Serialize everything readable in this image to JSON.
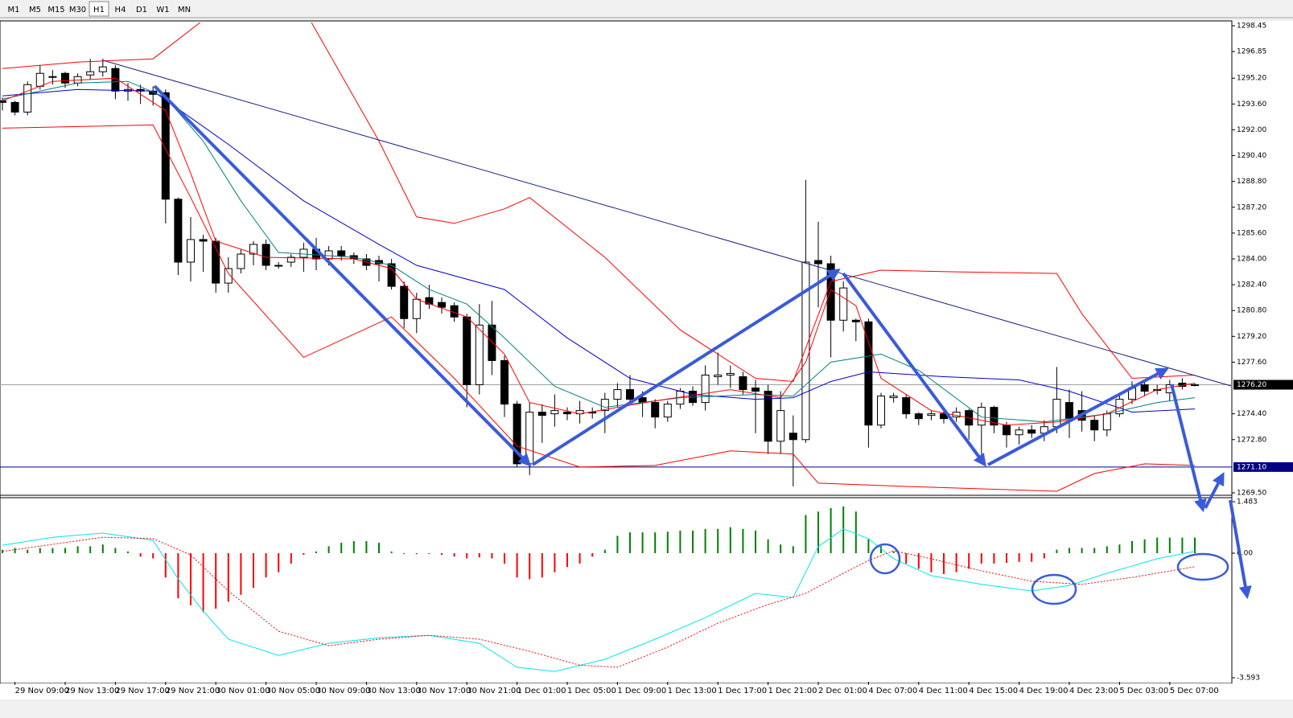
{
  "toolbar": {
    "buttons": [
      "M1",
      "M5",
      "M15",
      "M30",
      "H1",
      "H4",
      "D1",
      "W1",
      "MN"
    ],
    "active": 4
  },
  "chart_data": [
    {
      "type": "candlestick",
      "categories": [
        null,
        "29 Nov 09:00",
        null,
        null,
        null,
        "29 Nov 13:00",
        null,
        null,
        null,
        "29 Nov 17:00",
        null,
        null,
        null,
        "29 Nov 21:00",
        null,
        null,
        null,
        "30 Nov 01:00",
        null,
        null,
        null,
        "30 Nov 05:00",
        null,
        null,
        null,
        "30 Nov 09:00",
        null,
        null,
        null,
        "30 Nov 13:00",
        null,
        null,
        null,
        "30 Nov 17:00",
        null,
        null,
        null,
        "30 Nov 21:00",
        null,
        null,
        null,
        "1 Dec 01:00",
        null,
        null,
        null,
        "1 Dec 05:00",
        null,
        null,
        null,
        "1 Dec 09:00",
        null,
        null,
        null,
        "1 Dec 13:00",
        null,
        null,
        null,
        "1 Dec 17:00",
        null,
        null,
        null,
        "1 Dec 21:00",
        null,
        null,
        null,
        "2 Dec 01:00",
        null,
        null,
        null,
        "4 Dec 07:00",
        null,
        null,
        null,
        "4 Dec 11:00",
        null,
        null,
        null,
        "4 Dec 15:00",
        null,
        null,
        null,
        "4 Dec 19:00",
        null,
        null,
        null,
        "4 Dec 23:00",
        null,
        null,
        null,
        "5 Dec 03:00",
        null,
        null,
        null,
        "5 Dec 07:00",
        null,
        null
      ],
      "open": [
        1293.8,
        1293.7,
        1293.1,
        1294.7,
        1295.3,
        1295.5,
        1294.9,
        1295.4,
        1295.6,
        1295.8,
        1294.4,
        1294.5,
        1294.4,
        1294.3,
        1287.7,
        1283.8,
        1285.2,
        1285.1,
        1282.5,
        1283.4,
        1284.3,
        1284.9,
        1283.6,
        1283.8,
        1284.1,
        1284.6,
        1284.0,
        1284.5,
        1284.2,
        1284.0,
        1283.9,
        1283.7,
        1282.3,
        1280.3,
        1281.6,
        1281.3,
        1281.1,
        1280.4,
        1276.2,
        1279.9,
        1277.7,
        1275.0,
        1271.3,
        1274.5,
        1274.4,
        1274.5,
        1274.4,
        1274.5,
        1274.6,
        1275.3,
        1275.9,
        1275.4,
        1275.1,
        1274.2,
        1275.0,
        1275.8,
        1275.1,
        1276.7,
        1276.8,
        1276.7,
        1276.0,
        1275.8,
        1272.7,
        1273.2,
        1272.8,
        1283.9,
        1283.7,
        1280.2,
        1280.2,
        1280.1,
        1273.7,
        1275.4,
        1275.4,
        1274.4,
        1274.3,
        1274.4,
        1274.2,
        1274.6,
        1273.7,
        1274.8,
        1273.7,
        1273.1,
        1273.4,
        1273.2,
        1273.6,
        1275.1,
        1274.6,
        1274.0,
        1273.4,
        1274.4,
        1275.3,
        1276.2,
        1275.9,
        1275.7,
        1276.3,
        1276.2
      ],
      "high": [
        1294.0,
        1293.8,
        1295.0,
        1296.0,
        1295.7,
        1295.6,
        1295.5,
        1296.4,
        1296.4,
        1296.0,
        1294.9,
        1294.8,
        1294.7,
        1294.5,
        1287.8,
        1286.6,
        1285.5,
        1285.3,
        1284.1,
        1284.6,
        1285.1,
        1285.2,
        1283.8,
        1284.3,
        1285.0,
        1285.3,
        1284.8,
        1284.8,
        1284.4,
        1284.3,
        1284.2,
        1284.0,
        1282.6,
        1281.9,
        1282.4,
        1281.6,
        1281.3,
        1280.6,
        1281.2,
        1281.4,
        1278.0,
        1275.2,
        1275.1,
        1275.0,
        1275.6,
        1274.8,
        1275.2,
        1274.8,
        1275.7,
        1276.3,
        1276.8,
        1275.8,
        1275.3,
        1275.2,
        1276.0,
        1276.1,
        1277.4,
        1278.2,
        1277.4,
        1277.0,
        1276.5,
        1276.2,
        1275.8,
        1274.3,
        1288.9,
        1286.3,
        1284.2,
        1282.6,
        1280.3,
        1280.3,
        1275.7,
        1275.7,
        1275.6,
        1274.5,
        1274.6,
        1274.6,
        1274.8,
        1274.7,
        1275.1,
        1274.9,
        1273.9,
        1273.6,
        1273.7,
        1274.0,
        1277.3,
        1275.9,
        1275.8,
        1274.3,
        1274.6,
        1275.6,
        1276.4,
        1276.5,
        1276.2,
        1276.5,
        1276.6,
        1276.3
      ],
      "low": [
        1293.2,
        1292.9,
        1292.9,
        1294.5,
        1294.8,
        1294.6,
        1294.7,
        1295.1,
        1295.3,
        1293.9,
        1293.8,
        1293.6,
        1293.5,
        1286.2,
        1283.0,
        1282.6,
        1283.2,
        1281.9,
        1281.9,
        1283.1,
        1283.6,
        1283.3,
        1283.4,
        1283.5,
        1283.2,
        1283.3,
        1283.6,
        1283.9,
        1283.7,
        1283.3,
        1282.6,
        1282.1,
        1279.7,
        1279.4,
        1280.9,
        1280.6,
        1280.1,
        1274.8,
        1275.6,
        1276.8,
        1274.2,
        1271.1,
        1270.6,
        1272.6,
        1273.6,
        1274.0,
        1273.8,
        1274.1,
        1273.2,
        1274.8,
        1275.0,
        1274.2,
        1273.5,
        1273.9,
        1274.7,
        1274.9,
        1274.6,
        1276.2,
        1276.0,
        1275.6,
        1273.2,
        1271.9,
        1271.9,
        1269.9,
        1272.6,
        1281.0,
        1277.9,
        1279.5,
        1278.9,
        1272.3,
        1273.5,
        1275.1,
        1274.1,
        1273.7,
        1274.0,
        1273.8,
        1273.9,
        1272.8,
        1271.3,
        1273.2,
        1272.3,
        1272.5,
        1272.9,
        1272.7,
        1273.2,
        1272.9,
        1273.3,
        1272.7,
        1273.0,
        1274.2,
        1275.0,
        1275.5,
        1275.6,
        1275.2,
        1275.9,
        1276.1
      ],
      "close": [
        1293.7,
        1293.1,
        1294.8,
        1295.5,
        1295.3,
        1294.9,
        1295.3,
        1295.6,
        1295.9,
        1294.4,
        1294.5,
        1294.4,
        1294.2,
        1287.7,
        1283.8,
        1285.2,
        1285.1,
        1282.5,
        1283.4,
        1284.3,
        1284.9,
        1283.6,
        1283.6,
        1284.1,
        1284.6,
        1284.0,
        1284.5,
        1284.2,
        1284.0,
        1283.6,
        1283.7,
        1282.3,
        1280.3,
        1281.5,
        1281.2,
        1281.0,
        1280.4,
        1276.2,
        1279.9,
        1277.7,
        1275.0,
        1271.3,
        1274.5,
        1274.3,
        1274.6,
        1274.4,
        1274.6,
        1274.5,
        1275.3,
        1275.9,
        1275.3,
        1275.1,
        1274.2,
        1275.0,
        1275.8,
        1275.1,
        1276.8,
        1276.8,
        1276.9,
        1275.9,
        1275.8,
        1272.7,
        1274.6,
        1272.8,
        1283.8,
        1283.7,
        1280.2,
        1282.2,
        1280.1,
        1273.7,
        1275.5,
        1275.5,
        1274.4,
        1274.1,
        1274.4,
        1274.1,
        1274.5,
        1273.7,
        1274.8,
        1273.7,
        1273.1,
        1273.4,
        1273.2,
        1273.6,
        1275.3,
        1274.1,
        1274.0,
        1273.4,
        1274.4,
        1275.3,
        1276.0,
        1275.8,
        1275.9,
        1276.2,
        1276.1,
        1276.2
      ],
      "up_color": "#ffffff",
      "down_color": "#000000",
      "series": [
        {
          "color": "#ff0000",
          "x": [
            0,
            6,
            12,
            18,
            24,
            30,
            33,
            36,
            40,
            42,
            48,
            54,
            60,
            63,
            66,
            70,
            76,
            84,
            86,
            90,
            95
          ],
          "values": [
            1295.8,
            1296.2,
            1296.4,
            1300.0,
            1299.5,
            1291.3,
            1286.6,
            1286.2,
            1287.1,
            1287.8,
            1284.1,
            1279.6,
            1276.6,
            1276.4,
            1282.6,
            1283.3,
            1283.2,
            1283.1,
            1280.6,
            1276.6,
            1276.8
          ]
        },
        {
          "color": "#ff0000",
          "x": [
            0,
            12,
            15,
            18,
            24,
            31,
            36,
            41,
            46,
            52,
            58,
            63,
            65,
            72,
            84,
            87,
            91,
            95
          ],
          "values": [
            1292.1,
            1292.3,
            1287.8,
            1283.1,
            1277.9,
            1280.4,
            1276.6,
            1272.4,
            1271.1,
            1271.2,
            1272.1,
            1271.9,
            1270.1,
            1269.9,
            1269.6,
            1270.7,
            1271.3,
            1271.2
          ]
        },
        {
          "color": "#0000cd",
          "x": [
            0,
            6,
            12,
            18,
            24,
            30,
            33,
            40,
            45,
            50,
            55,
            60,
            63,
            66,
            69,
            75,
            81,
            85,
            90,
            95
          ],
          "values": [
            1294.1,
            1294.5,
            1294.4,
            1291.1,
            1287.6,
            1284.9,
            1283.6,
            1282.1,
            1279.1,
            1276.6,
            1275.6,
            1275.3,
            1275.4,
            1276.4,
            1277.0,
            1276.7,
            1276.5,
            1275.8,
            1274.5,
            1274.7
          ]
        },
        {
          "color": "#008080",
          "x": [
            0,
            6,
            10,
            13,
            16,
            19,
            22,
            28,
            31,
            34,
            37,
            40,
            44,
            48,
            54,
            60,
            63,
            66,
            70,
            73,
            78,
            83,
            88,
            92,
            95
          ],
          "values": [
            1293.9,
            1294.9,
            1295.0,
            1294.0,
            1291.3,
            1287.6,
            1284.4,
            1284.1,
            1283.6,
            1282.1,
            1281.2,
            1279.1,
            1276.1,
            1274.8,
            1275.4,
            1275.6,
            1275.5,
            1277.6,
            1278.1,
            1277.1,
            1274.2,
            1273.9,
            1274.4,
            1275.1,
            1275.4
          ]
        },
        {
          "color": "#ff0000",
          "x": [
            0,
            4,
            9,
            13,
            15,
            17,
            21,
            28,
            31,
            33,
            37,
            40,
            42,
            46,
            52,
            58,
            62,
            64,
            66,
            68,
            70,
            74,
            80,
            84,
            88,
            92,
            95
          ],
          "values": [
            1293.8,
            1295.0,
            1295.2,
            1293.2,
            1289.3,
            1285.1,
            1284.1,
            1284.0,
            1283.4,
            1281.5,
            1280.4,
            1278.1,
            1275.1,
            1274.4,
            1275.2,
            1275.9,
            1275.4,
            1277.6,
            1282.1,
            1281.1,
            1276.6,
            1274.6,
            1273.7,
            1273.9,
            1274.4,
            1275.9,
            1276.3
          ]
        }
      ],
      "ylim": [
        1269.35,
        1298.65
      ],
      "yticks": [
        1298.45,
        1296.85,
        {
          "value": 1295.2,
          "label": "1295.20"
        },
        {
          "value": 1293.6,
          "label": "1293.60"
        },
        {
          "value": 1292,
          "label": "1292.00"
        },
        {
          "value": 1290.4,
          "label": "1290.40"
        },
        {
          "value": 1288.8,
          "label": "1288.80"
        },
        {
          "value": 1287.2,
          "label": "1287.20"
        },
        {
          "value": 1285.6,
          "label": "1285.60"
        },
        {
          "value": 1284,
          "label": "1284.00"
        },
        {
          "value": 1282.4,
          "label": "1282.40"
        },
        {
          "value": 1280.8,
          "label": "1280.80"
        },
        {
          "value": 1279.2,
          "label": "1279.20"
        },
        {
          "value": 1277.6,
          "label": "1277.60"
        },
        {
          "value": 1274.4,
          "label": "1274.40"
        },
        {
          "value": 1272.8,
          "label": "1272.80"
        },
        {
          "value": 1269.5,
          "label": "1269.50"
        }
      ],
      "hlines": [
        {
          "value": 1276.2,
          "label": "1276.20",
          "color": "#000000"
        },
        {
          "value": 1271.1,
          "label": "1271.10",
          "color": "#000080"
        }
      ]
    },
    {
      "type": "bar",
      "values": [
        0.1,
        0.15,
        0.1,
        0.15,
        0.15,
        0.15,
        0.2,
        0.2,
        0.25,
        0.15,
        0.05,
        -0.1,
        -0.15,
        -0.7,
        -1.3,
        -1.5,
        -1.7,
        -1.6,
        -1.4,
        -1.2,
        -1.0,
        -0.7,
        -0.55,
        -0.3,
        -0.05,
        0.05,
        0.2,
        0.3,
        0.35,
        0.35,
        0.3,
        0.05,
        -0.02,
        -0.03,
        -0.02,
        -0.05,
        -0.1,
        -0.15,
        -0.12,
        -0.15,
        -0.3,
        -0.7,
        -0.75,
        -0.7,
        -0.55,
        -0.4,
        -0.3,
        -0.1,
        0.1,
        0.5,
        0.6,
        0.6,
        0.6,
        0.62,
        0.65,
        0.65,
        0.7,
        0.7,
        0.75,
        0.7,
        0.65,
        0.4,
        0.25,
        0.2,
        1.1,
        1.2,
        1.3,
        1.35,
        1.2,
        0.4,
        0.2,
        0.05,
        -0.3,
        -0.45,
        -0.55,
        -0.6,
        -0.55,
        -0.45,
        -0.3,
        -0.3,
        -0.28,
        -0.25,
        -0.25,
        -0.15,
        0.1,
        0.15,
        0.15,
        0.15,
        0.2,
        0.25,
        0.35,
        0.4,
        0.45,
        0.45,
        0.45,
        0.45
      ],
      "up_color": "#008000",
      "down_color": "#ff0000",
      "series": [
        {
          "color": "#00e5ee",
          "dash": false,
          "x": [
            0,
            4,
            8,
            12,
            14,
            16,
            18,
            22,
            26,
            30,
            34,
            38,
            41,
            44,
            48,
            52,
            56,
            60,
            63,
            65,
            67,
            69,
            71,
            74,
            78,
            82,
            85,
            88,
            92,
            95
          ],
          "values": [
            0.23,
            0.46,
            0.58,
            0.37,
            -0.74,
            -1.67,
            -2.48,
            -2.95,
            -2.6,
            -2.44,
            -2.37,
            -2.6,
            -3.29,
            -3.41,
            -3.06,
            -2.48,
            -1.86,
            -1.16,
            -1.28,
            0.19,
            0.7,
            0.42,
            -0.16,
            -0.65,
            -0.9,
            -1.09,
            -0.93,
            -0.58,
            -0.16,
            0.05
          ]
        },
        {
          "color": "#ff0000",
          "dash": true,
          "x": [
            0,
            8,
            12,
            15,
            18,
            22,
            26,
            30,
            34,
            38,
            42,
            46,
            49,
            53,
            57,
            61,
            64,
            67,
            69,
            71,
            74,
            78,
            82,
            86,
            90,
            95
          ],
          "values": [
            0.05,
            0.46,
            0.42,
            -0.05,
            -1.09,
            -2.25,
            -2.67,
            -2.48,
            -2.37,
            -2.48,
            -2.83,
            -3.23,
            -3.29,
            -2.71,
            -2.02,
            -1.48,
            -1.16,
            -0.58,
            -0.21,
            0.07,
            -0.16,
            -0.51,
            -0.81,
            -0.9,
            -0.7,
            -0.39
          ]
        }
      ],
      "ylim": [
        -3.71,
        1.6
      ],
      "yticks": [
        1.483,
        {
          "value": 0,
          "label": "0.00"
        },
        -3.593
      ]
    }
  ]
}
